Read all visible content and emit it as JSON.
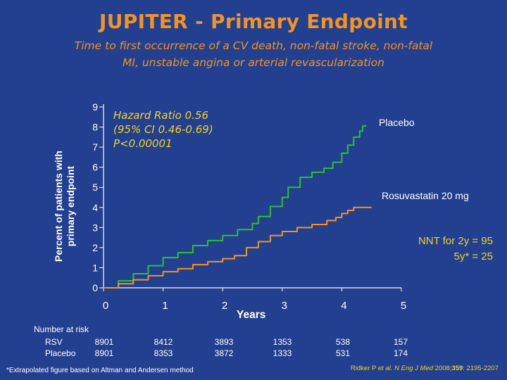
{
  "slide": {
    "title": "JUPITER - Primary Endpoint",
    "subtitle_line1": "Time to first occurrence of a CV death, non-fatal stroke, non-fatal",
    "subtitle_line2": "MI, unstable angina or arterial revascularization"
  },
  "colors": {
    "background": "#233f8f",
    "title": "#f29325",
    "placebo_line": "#2fbf3a",
    "rosuvastatin_line": "#f29325",
    "annotation": "#f2d22a"
  },
  "annotation": {
    "line1": "Hazard Ratio 0.56",
    "line2": "(95% CI 0.46-0.69)",
    "line3": "P<0.00001"
  },
  "nnt": {
    "line1": "NNT for 2y  = 95",
    "line2": "5y* = 25"
  },
  "risk_table": {
    "header": "Number at risk",
    "rows": [
      {
        "label": "RSV",
        "values": [
          "8901",
          "8412",
          "3893",
          "1353",
          "538",
          "157"
        ]
      },
      {
        "label": "Placebo",
        "values": [
          "8901",
          "8353",
          "3872",
          "1333",
          "531",
          "174"
        ]
      }
    ]
  },
  "footnote": "*Extrapolated figure based on Altman and Andersen method",
  "citation": {
    "authors": "Ridker P ",
    "etal": "et al.",
    "journal": " N Eng J Med",
    "year": " 2008;",
    "volume": "359",
    "pages": ": 2195-2207"
  },
  "chart_data": {
    "type": "line",
    "xlabel": "Years",
    "ylabel_line1": "Percent of patients with",
    "ylabel_line2": "primary endpoint",
    "xlim": [
      0,
      5
    ],
    "ylim": [
      0,
      9
    ],
    "xticks": [
      "0",
      "1",
      "2",
      "3",
      "4",
      "5"
    ],
    "yticks": [
      "0",
      "1",
      "2",
      "3",
      "4",
      "5",
      "6",
      "7",
      "8",
      "9"
    ],
    "grid": false,
    "series": [
      {
        "name": "Placebo",
        "step": true,
        "points": [
          [
            0,
            0
          ],
          [
            0.25,
            0.35
          ],
          [
            0.5,
            0.7
          ],
          [
            0.75,
            1.1
          ],
          [
            1.0,
            1.5
          ],
          [
            1.25,
            1.75
          ],
          [
            1.5,
            2.1
          ],
          [
            1.75,
            2.35
          ],
          [
            2.0,
            2.6
          ],
          [
            2.25,
            2.9
          ],
          [
            2.5,
            3.2
          ],
          [
            2.6,
            3.55
          ],
          [
            2.8,
            4.05
          ],
          [
            3.0,
            4.5
          ],
          [
            3.1,
            5.0
          ],
          [
            3.3,
            5.5
          ],
          [
            3.5,
            5.75
          ],
          [
            3.7,
            5.95
          ],
          [
            3.85,
            6.25
          ],
          [
            4.0,
            6.7
          ],
          [
            4.1,
            7.1
          ],
          [
            4.2,
            7.5
          ],
          [
            4.3,
            7.8
          ],
          [
            4.35,
            8.05
          ],
          [
            4.4,
            8.1
          ]
        ]
      },
      {
        "name": "Rosuvastatin 20 mg",
        "step": true,
        "points": [
          [
            0,
            0
          ],
          [
            0.25,
            0.2
          ],
          [
            0.5,
            0.4
          ],
          [
            0.75,
            0.6
          ],
          [
            1.0,
            0.8
          ],
          [
            1.25,
            0.95
          ],
          [
            1.5,
            1.15
          ],
          [
            1.75,
            1.3
          ],
          [
            2.0,
            1.45
          ],
          [
            2.2,
            1.6
          ],
          [
            2.4,
            2.0
          ],
          [
            2.6,
            2.3
          ],
          [
            2.8,
            2.6
          ],
          [
            3.0,
            2.8
          ],
          [
            3.25,
            3.0
          ],
          [
            3.5,
            3.15
          ],
          [
            3.75,
            3.35
          ],
          [
            3.9,
            3.5
          ],
          [
            4.0,
            3.7
          ],
          [
            4.1,
            3.85
          ],
          [
            4.2,
            4.0
          ],
          [
            4.5,
            4.0
          ]
        ]
      }
    ]
  }
}
